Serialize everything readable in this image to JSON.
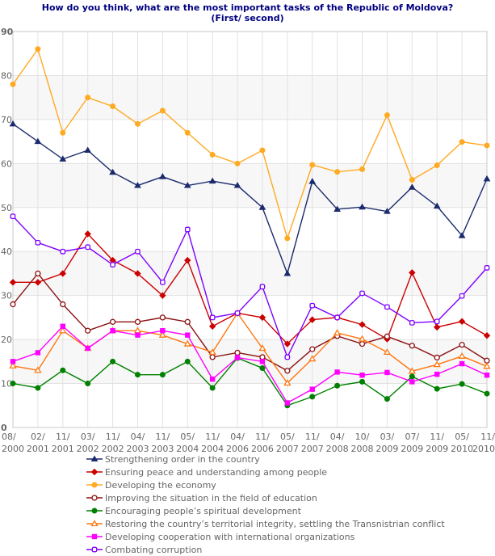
{
  "chart_data": {
    "type": "line",
    "title": "How do you think, what are the most important tasks of the Republic of Moldova?",
    "subtitle": "(First/ second)",
    "xlabel": "",
    "ylabel": "",
    "ylim": [
      0,
      90
    ],
    "yticks": [
      0,
      10,
      20,
      30,
      40,
      50,
      60,
      70,
      80,
      90
    ],
    "grid": true,
    "legend_position": "bottom",
    "categories": [
      [
        "08/",
        "2000"
      ],
      [
        "02/",
        "2001"
      ],
      [
        "11/",
        "2001"
      ],
      [
        "03/",
        "2002"
      ],
      [
        "11/",
        "2002"
      ],
      [
        "04/",
        "2003"
      ],
      [
        "11/",
        "2003"
      ],
      [
        "05/",
        "2004"
      ],
      [
        "11/",
        "2004"
      ],
      [
        "04/",
        "2006"
      ],
      [
        "11/",
        "2006"
      ],
      [
        "05/",
        "2007"
      ],
      [
        "11/",
        "2007"
      ],
      [
        "04/",
        "2008"
      ],
      [
        "10/",
        "2008"
      ],
      [
        "03/",
        "2009"
      ],
      [
        "07/",
        "2009"
      ],
      [
        "11/",
        "2009"
      ],
      [
        "05/",
        "2010"
      ],
      [
        "11/",
        "2010"
      ]
    ],
    "series": [
      {
        "name": "Strengthening order in the country",
        "color": "#1a2a6c",
        "marker": "triangle",
        "values": [
          69,
          65,
          61,
          63,
          58,
          55,
          57,
          55,
          56,
          55,
          50,
          35,
          55.9,
          49.6,
          50.1,
          49.1,
          54.6,
          50.3,
          43.6,
          56.5
        ]
      },
      {
        "name": "Ensuring peace and understanding among people",
        "color": "#cc0000",
        "marker": "diamond",
        "values": [
          33,
          33,
          35,
          44,
          38,
          35,
          30,
          38,
          23,
          26,
          25,
          19,
          24.5,
          25,
          23.4,
          20.1,
          35.2,
          22.8,
          24.1,
          20.9
        ]
      },
      {
        "name": "Developing the economy",
        "color": "#ffaa22",
        "marker": "circle",
        "values": [
          78,
          86,
          67,
          75,
          73,
          69,
          72,
          67,
          62,
          60,
          63,
          43,
          59.7,
          58.1,
          58.7,
          71,
          56.3,
          59.6,
          64.9,
          64.1
        ]
      },
      {
        "name": "Improving the situation in the field of education",
        "color": "#8b1010",
        "marker": "circle-open",
        "values": [
          28,
          35,
          28,
          22,
          24,
          24,
          25,
          24,
          16,
          17,
          16,
          12.9,
          17.8,
          20.8,
          19,
          20.7,
          18.6,
          15.9,
          18.8,
          15.2
        ]
      },
      {
        "name": "Encouraging people’s spiritual development",
        "color": "#008000",
        "marker": "circle",
        "values": [
          10,
          9,
          13,
          10,
          15,
          12,
          12,
          15,
          9,
          15.8,
          13.5,
          5,
          7,
          9.5,
          10.4,
          6.5,
          11.6,
          8.8,
          9.9,
          7.7
        ]
      },
      {
        "name": "Restoring the country’s territorial integrity, settling the Transnistrian conflict",
        "color": "#ff7711",
        "marker": "triangle-open",
        "values": [
          14,
          13,
          22,
          18,
          22,
          22,
          21,
          19,
          17.1,
          26,
          18,
          10.1,
          15.6,
          21.5,
          20.1,
          17.1,
          12.8,
          14.3,
          16.2,
          13.9
        ]
      },
      {
        "name": "Developing cooperation with  international organizations",
        "color": "#ff00ff",
        "marker": "square",
        "values": [
          15,
          17,
          23,
          18,
          22,
          21,
          22,
          21,
          11,
          15.9,
          15,
          5.6,
          8.7,
          12.6,
          11.9,
          12.5,
          10.4,
          12.1,
          14.5,
          11.9
        ]
      },
      {
        "name": "Combating corruption",
        "color": "#7f00ff",
        "marker": "square-open",
        "values": [
          48,
          42,
          40,
          41,
          37,
          40,
          33,
          45,
          25,
          26,
          32,
          16,
          27.7,
          25,
          30.5,
          27.4,
          23.8,
          24.1,
          29.9,
          36.3
        ]
      }
    ]
  }
}
